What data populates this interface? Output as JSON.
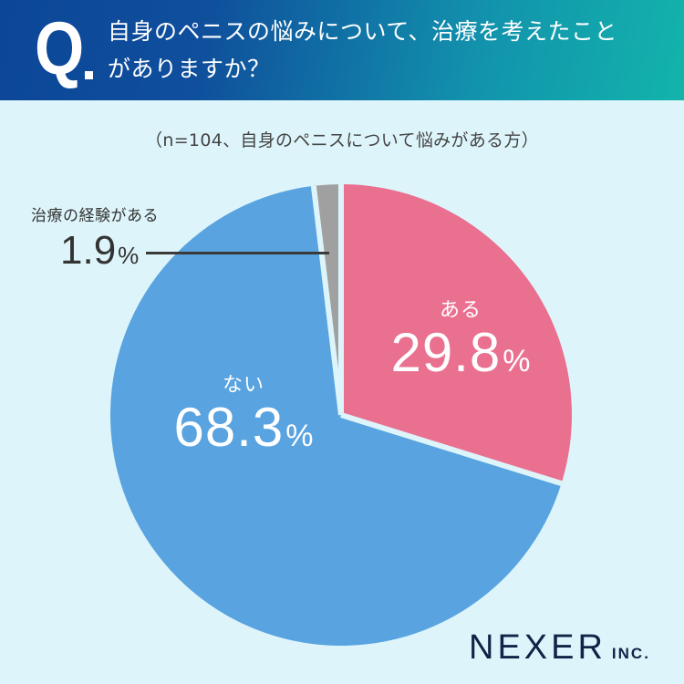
{
  "header": {
    "q_mark": "Q",
    "question_line1": "自身のペニスの悩みについて、治療を考えたこと",
    "question_line2": "がありますか？",
    "gradient_start": "#0c4698",
    "gradient_end": "#13b4ab"
  },
  "subtitle": "（n=104、自身のペニスについて悩みがある方）",
  "slices": [
    {
      "name": "ある",
      "value": "29.8",
      "pct": "%",
      "color": "#ea7090"
    },
    {
      "name": "ない",
      "value": "68.3",
      "pct": "%",
      "color": "#58a3e0"
    },
    {
      "name": "治療の経験がある",
      "value": "1.9",
      "pct": "%",
      "color": "#a0a0a0"
    }
  ],
  "logo": {
    "name": "NEXER",
    "suffix": "INC."
  },
  "chart_data": {
    "type": "pie",
    "title": "自身のペニスの悩みについて、治療を考えたことがありますか？",
    "subtitle": "（n=104、自身のペニスについて悩みがある方）",
    "categories": [
      "ある",
      "ない",
      "治療の経験がある"
    ],
    "values": [
      29.8,
      68.3,
      1.9
    ],
    "colors": [
      "#ea7090",
      "#58a3e0",
      "#a0a0a0"
    ],
    "unit": "%",
    "start_angle": "12 o'clock, clockwise",
    "legend": "none (direct labels)",
    "n": 104
  }
}
